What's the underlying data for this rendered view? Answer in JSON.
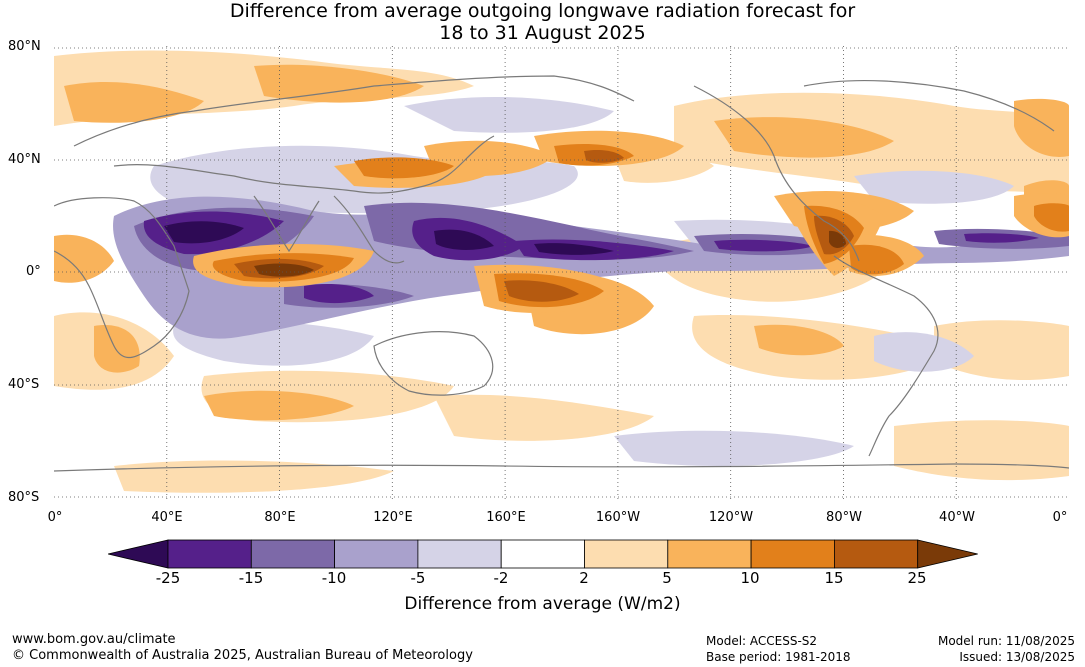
{
  "title": {
    "line1": "Difference from average outgoing longwave radiation forecast for",
    "line2": "18 to 31 August 2025"
  },
  "map": {
    "lat_labels": [
      "80°N",
      "40°N",
      "0°",
      "40°S",
      "80°S"
    ],
    "lon_labels": [
      "0°",
      "40°E",
      "80°E",
      "120°E",
      "160°E",
      "160°W",
      "120°W",
      "80°W",
      "40°W",
      "0°"
    ],
    "grid": "dotted",
    "coastline_color": "#7a7a7a"
  },
  "colorbar": {
    "ticks": [
      "-25",
      "-15",
      "-10",
      "-5",
      "-2",
      "2",
      "5",
      "10",
      "15",
      "25"
    ],
    "colors": [
      "#2e0a55",
      "#55208a",
      "#7d69a8",
      "#a9a1cc",
      "#d5d3e7",
      "#ffffff",
      "#fdddb0",
      "#f9b35b",
      "#e2801b",
      "#b55a10",
      "#7a3a08"
    ],
    "label": "Difference from average (W/m2)"
  },
  "footer": {
    "url": "www.bom.gov.au/climate",
    "copyright": "© Commonwealth of Australia 2025, Australian Bureau of Meteorology",
    "model": "Model: ACCESS-S2",
    "base_period": "Base period: 1981-2018",
    "model_run": "Model run: 11/08/2025",
    "issued": "Issued: 13/08/2025"
  }
}
